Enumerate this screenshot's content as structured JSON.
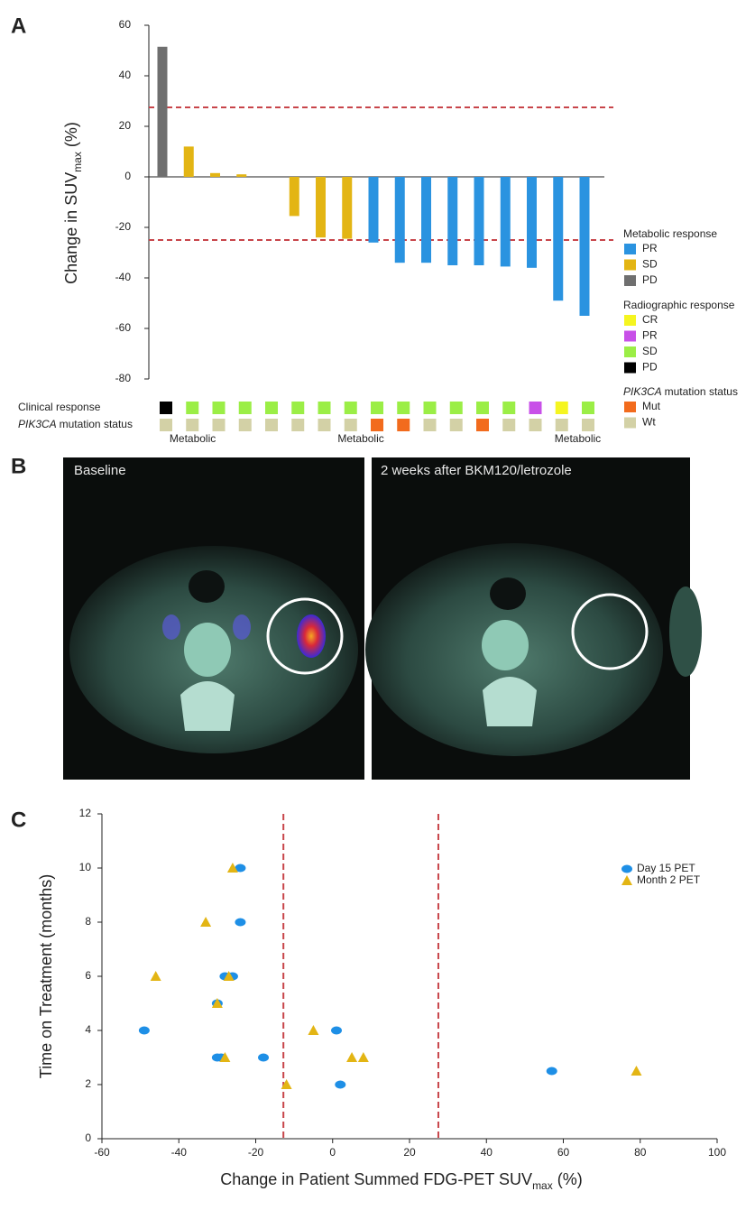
{
  "panel_labels": [
    "A",
    "B",
    "C"
  ],
  "images": {
    "panels": [
      {
        "caption": "Baseline"
      },
      {
        "caption": "2 weeks after BKM120/letrozole"
      }
    ]
  },
  "chart_data": [
    {
      "type": "bar",
      "y_label": [
        "Change in SUV",
        "max",
        "(%)"
      ],
      "values": [
        51.5,
        12,
        1.5,
        1,
        0,
        -15.5,
        -24,
        -24.5,
        -26,
        -34,
        -34,
        -35,
        -35,
        -35.5,
        -36,
        -49,
        -55
      ],
      "metabolic_response": [
        2,
        1,
        1,
        1,
        1,
        1,
        1,
        1,
        0,
        0,
        0,
        0,
        0,
        0,
        0,
        0,
        0
      ],
      "ylim": [
        -80,
        60
      ],
      "yticks": [
        -80,
        -60,
        -40,
        -20,
        0,
        20,
        40,
        60
      ],
      "ref_lines": [
        27.5,
        -25
      ],
      "ref_color": "#c8454a",
      "legends": [
        {
          "title": [
            "Metabolic response"
          ],
          "items": [
            {
              "name": "PR",
              "color": "#2a93e0"
            },
            {
              "name": "SD",
              "color": "#e3b514"
            },
            {
              "name": "PD",
              "color": "#6f6f6f"
            }
          ]
        },
        {
          "title": [
            "Radiographic response"
          ],
          "items": [
            {
              "name": "CR",
              "color": "#f5f520"
            },
            {
              "name": "PR",
              "color": "#c850e8"
            },
            {
              "name": "SD",
              "color": "#9bee46"
            },
            {
              "name": "PD",
              "color": "#000000"
            }
          ]
        },
        {
          "title": [
            "PIK3CA",
            "mutation status"
          ],
          "items": [
            {
              "name": "Mut",
              "color": "#f26b1d"
            },
            {
              "name": "Wt",
              "color": "#d3d1a6"
            }
          ]
        }
      ],
      "status_rows": [
        {
          "label": [
            "Clinical response"
          ],
          "legend": 1,
          "values": [
            3,
            2,
            2,
            2,
            2,
            2,
            2,
            2,
            2,
            2,
            2,
            2,
            2,
            2,
            1,
            0,
            2
          ]
        },
        {
          "label": [
            "PIK3CA",
            "mutation status"
          ],
          "legend": 2,
          "values": [
            1,
            1,
            1,
            1,
            1,
            1,
            1,
            1,
            0,
            0,
            1,
            1,
            0,
            1,
            1,
            1,
            1
          ]
        }
      ]
    },
    {
      "type": "scatter",
      "x_label": [
        "Change in Patient Summed FDG-PET SUV",
        "max",
        "(%)"
      ],
      "y_label": "Time on Treatment (months)",
      "xlim": [
        -60,
        100
      ],
      "ylim": [
        0,
        12
      ],
      "xticks": [
        -60,
        -40,
        -20,
        0,
        20,
        40,
        60,
        80,
        100
      ],
      "yticks": [
        0,
        2,
        4,
        6,
        8,
        10,
        12
      ],
      "vlines": [
        -12.8,
        27.5
      ],
      "ref_color": "#c8454a",
      "region_labels": [
        "Metabolic",
        "Metabolic",
        "Metabolic"
      ],
      "series": [
        {
          "name": "Day 15 PET",
          "color": "#1e8fe6",
          "marker": "circle",
          "x": [
            -24,
            -24,
            -28,
            -26,
            -30,
            -49,
            1,
            -30,
            -29,
            -18,
            2,
            57
          ],
          "y": [
            10,
            8,
            6,
            6,
            5,
            4,
            4,
            3,
            3,
            3,
            2,
            2.5
          ]
        },
        {
          "name": "Month 2 PET",
          "color": "#e3b514",
          "marker": "triangle",
          "x": [
            -26,
            -33,
            -46,
            -27,
            -30,
            -28,
            -5,
            -12,
            5,
            8,
            79
          ],
          "y": [
            10,
            8,
            6,
            6,
            5,
            3,
            4,
            2,
            3,
            3,
            2.5
          ]
        }
      ]
    }
  ]
}
